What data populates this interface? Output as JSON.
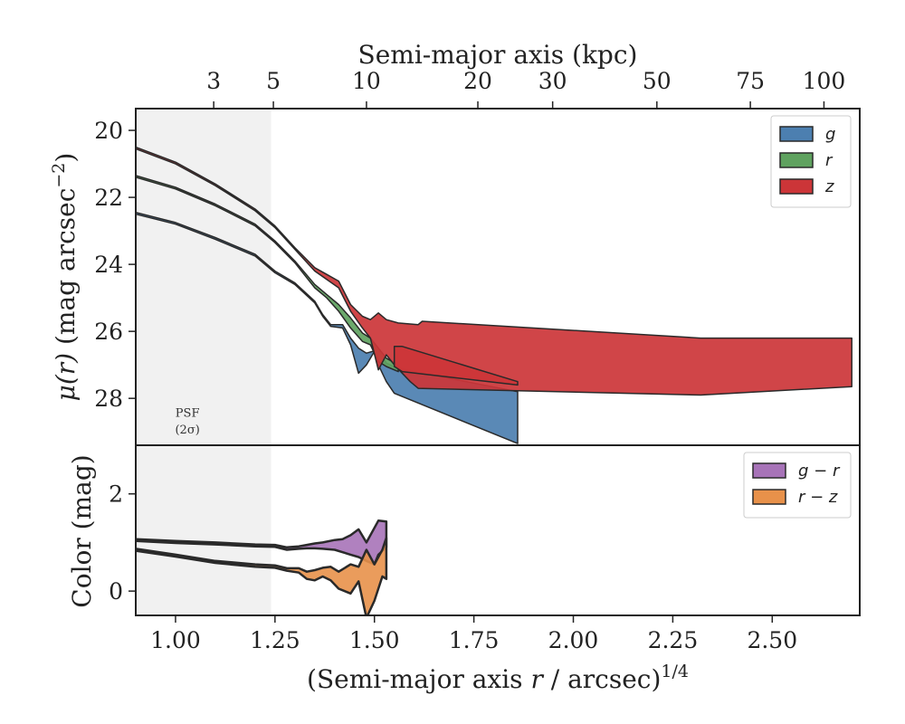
{
  "chart_data": [
    {
      "type": "area",
      "panel": "surface-brightness",
      "ylabel": "μ(r) (mag arcsec⁻²)",
      "xlim": [
        0.9,
        2.72
      ],
      "ylim": [
        29.4,
        19.35
      ],
      "y_inverted": true,
      "yticks": [
        20,
        22,
        24,
        26,
        28
      ],
      "top_xlabel": "Semi-major axis (kpc)",
      "top_xticks": [
        {
          "label": "3",
          "at": 1.096
        },
        {
          "label": "5",
          "at": 1.246
        },
        {
          "label": "10",
          "at": 1.48
        },
        {
          "label": "20",
          "at": 1.76
        },
        {
          "label": "30",
          "at": 1.948
        },
        {
          "label": "50",
          "at": 2.21
        },
        {
          "label": "75",
          "at": 2.445
        },
        {
          "label": "100",
          "at": 2.63
        }
      ],
      "psf_shade": {
        "xmax": 1.24,
        "label_line1": "PSF",
        "label_line2": "(2σ)"
      },
      "legend": {
        "position": "upper-right"
      },
      "series": [
        {
          "name": "g",
          "color": "#4c7fb0",
          "upper": [
            [
              0.9,
              22.45
            ],
            [
              1.0,
              22.75
            ],
            [
              1.1,
              23.2
            ],
            [
              1.2,
              23.7
            ],
            [
              1.25,
              24.2
            ],
            [
              1.3,
              24.55
            ],
            [
              1.35,
              25.1
            ],
            [
              1.37,
              25.5
            ],
            [
              1.39,
              25.8
            ],
            [
              1.42,
              25.8
            ],
            [
              1.44,
              26.2
            ],
            [
              1.46,
              26.5
            ],
            [
              1.48,
              26.65
            ],
            [
              1.51,
              26.55
            ],
            [
              1.53,
              26.95
            ],
            [
              1.56,
              27.1
            ],
            [
              1.86,
              27.8
            ]
          ],
          "lower": [
            [
              0.9,
              22.5
            ],
            [
              1.0,
              22.8
            ],
            [
              1.1,
              23.25
            ],
            [
              1.2,
              23.75
            ],
            [
              1.25,
              24.25
            ],
            [
              1.3,
              24.6
            ],
            [
              1.35,
              25.15
            ],
            [
              1.37,
              25.55
            ],
            [
              1.39,
              25.85
            ],
            [
              1.42,
              25.9
            ],
            [
              1.44,
              26.4
            ],
            [
              1.46,
              27.25
            ],
            [
              1.48,
              27.0
            ],
            [
              1.5,
              26.6
            ],
            [
              1.51,
              27.0
            ],
            [
              1.53,
              27.5
            ],
            [
              1.55,
              27.85
            ],
            [
              1.86,
              29.35
            ]
          ]
        },
        {
          "name": "r",
          "color": "#5fa25f",
          "upper": [
            [
              0.9,
              21.35
            ],
            [
              1.0,
              21.7
            ],
            [
              1.1,
              22.2
            ],
            [
              1.2,
              22.8
            ],
            [
              1.25,
              23.3
            ],
            [
              1.3,
              23.9
            ],
            [
              1.35,
              24.6
            ],
            [
              1.38,
              24.9
            ],
            [
              1.41,
              25.2
            ],
            [
              1.44,
              25.6
            ],
            [
              1.47,
              26.05
            ],
            [
              1.49,
              26.2
            ],
            [
              1.51,
              26.5
            ],
            [
              1.53,
              26.8
            ],
            [
              1.56,
              27.0
            ]
          ],
          "lower": [
            [
              0.9,
              21.4
            ],
            [
              1.0,
              21.75
            ],
            [
              1.1,
              22.25
            ],
            [
              1.2,
              22.85
            ],
            [
              1.25,
              23.35
            ],
            [
              1.3,
              23.95
            ],
            [
              1.35,
              24.7
            ],
            [
              1.38,
              25.0
            ],
            [
              1.41,
              25.4
            ],
            [
              1.44,
              25.9
            ],
            [
              1.47,
              26.3
            ],
            [
              1.49,
              26.4
            ],
            [
              1.51,
              26.9
            ],
            [
              1.53,
              27.05
            ],
            [
              1.56,
              27.2
            ]
          ]
        },
        {
          "name": "z",
          "color": "#cc3538",
          "upper": [
            [
              0.9,
              20.5
            ],
            [
              1.0,
              20.95
            ],
            [
              1.1,
              21.6
            ],
            [
              1.2,
              22.35
            ],
            [
              1.25,
              22.85
            ],
            [
              1.3,
              23.5
            ],
            [
              1.35,
              24.1
            ],
            [
              1.38,
              24.3
            ],
            [
              1.41,
              24.5
            ],
            [
              1.44,
              25.2
            ],
            [
              1.47,
              25.55
            ],
            [
              1.49,
              25.65
            ],
            [
              1.51,
              25.45
            ],
            [
              1.53,
              25.65
            ],
            [
              1.56,
              25.75
            ],
            [
              1.61,
              25.8
            ],
            [
              1.62,
              25.7
            ],
            [
              2.32,
              26.2
            ],
            [
              2.7,
              26.2
            ]
          ],
          "lower": [
            [
              0.9,
              20.55
            ],
            [
              1.0,
              21.0
            ],
            [
              1.1,
              21.65
            ],
            [
              1.2,
              22.4
            ],
            [
              1.25,
              22.9
            ],
            [
              1.3,
              23.55
            ],
            [
              1.35,
              24.2
            ],
            [
              1.38,
              24.45
            ],
            [
              1.41,
              24.7
            ],
            [
              1.44,
              25.4
            ],
            [
              1.47,
              25.9
            ],
            [
              1.49,
              26.2
            ],
            [
              1.51,
              27.15
            ],
            [
              1.53,
              26.7
            ],
            [
              1.55,
              27.0
            ],
            [
              1.59,
              27.5
            ],
            [
              1.61,
              27.7
            ],
            [
              2.32,
              27.9
            ],
            [
              2.7,
              27.65
            ]
          ]
        },
        {
          "name": "",
          "color": "#cc3538",
          "upper": [
            [
              1.55,
              26.45
            ],
            [
              1.57,
              26.45
            ],
            [
              1.86,
              27.5
            ]
          ],
          "lower": [
            [
              1.55,
              27.05
            ],
            [
              1.57,
              27.2
            ],
            [
              1.86,
              27.6
            ]
          ]
        }
      ]
    },
    {
      "type": "area",
      "panel": "color",
      "ylabel": "Color (mag)",
      "xlabel": "(Semi-major axis r / arcsec)1/4",
      "xlim": [
        0.9,
        2.72
      ],
      "ylim": [
        -0.5,
        3.0
      ],
      "yticks": [
        0,
        2
      ],
      "xticks": [
        "1.00",
        "1.25",
        "1.50",
        "1.75",
        "2.00",
        "2.25",
        "2.50"
      ],
      "xtick_values": [
        1.0,
        1.25,
        1.5,
        1.75,
        2.0,
        2.25,
        2.5
      ],
      "psf_shade": {
        "xmax": 1.24
      },
      "legend": {
        "position": "upper-right"
      },
      "series": [
        {
          "name": "g − r",
          "color": "#a773b8",
          "upper": [
            [
              0.9,
              1.07
            ],
            [
              1.0,
              1.03
            ],
            [
              1.1,
              1.0
            ],
            [
              1.2,
              0.96
            ],
            [
              1.25,
              0.95
            ],
            [
              1.28,
              0.9
            ],
            [
              1.31,
              0.92
            ],
            [
              1.33,
              0.95
            ],
            [
              1.35,
              0.98
            ],
            [
              1.37,
              1.0
            ],
            [
              1.4,
              1.05
            ],
            [
              1.42,
              1.07
            ],
            [
              1.44,
              1.15
            ],
            [
              1.46,
              1.27
            ],
            [
              1.48,
              1.0
            ],
            [
              1.5,
              1.3
            ],
            [
              1.51,
              1.45
            ],
            [
              1.53,
              1.43
            ]
          ],
          "lower": [
            [
              0.9,
              1.03
            ],
            [
              1.0,
              0.99
            ],
            [
              1.1,
              0.96
            ],
            [
              1.2,
              0.92
            ],
            [
              1.25,
              0.91
            ],
            [
              1.28,
              0.85
            ],
            [
              1.31,
              0.87
            ],
            [
              1.33,
              0.88
            ],
            [
              1.35,
              0.88
            ],
            [
              1.37,
              0.87
            ],
            [
              1.4,
              0.85
            ],
            [
              1.42,
              0.8
            ],
            [
              1.44,
              0.75
            ],
            [
              1.46,
              0.7
            ],
            [
              1.48,
              0.62
            ],
            [
              1.5,
              0.55
            ],
            [
              1.51,
              0.75
            ],
            [
              1.53,
              0.9
            ]
          ]
        },
        {
          "name": "r − z",
          "color": "#e8914a",
          "upper": [
            [
              0.9,
              0.87
            ],
            [
              1.0,
              0.75
            ],
            [
              1.1,
              0.62
            ],
            [
              1.2,
              0.55
            ],
            [
              1.25,
              0.53
            ],
            [
              1.28,
              0.47
            ],
            [
              1.31,
              0.47
            ],
            [
              1.33,
              0.4
            ],
            [
              1.35,
              0.43
            ],
            [
              1.37,
              0.48
            ],
            [
              1.39,
              0.5
            ],
            [
              1.41,
              0.4
            ],
            [
              1.44,
              0.55
            ],
            [
              1.46,
              0.5
            ],
            [
              1.48,
              0.85
            ],
            [
              1.5,
              0.55
            ],
            [
              1.52,
              0.85
            ],
            [
              1.53,
              1.1
            ]
          ],
          "lower": [
            [
              0.9,
              0.83
            ],
            [
              1.0,
              0.71
            ],
            [
              1.1,
              0.58
            ],
            [
              1.2,
              0.5
            ],
            [
              1.25,
              0.48
            ],
            [
              1.28,
              0.42
            ],
            [
              1.31,
              0.38
            ],
            [
              1.33,
              0.25
            ],
            [
              1.35,
              0.22
            ],
            [
              1.37,
              0.3
            ],
            [
              1.39,
              0.22
            ],
            [
              1.41,
              0.05
            ],
            [
              1.44,
              -0.05
            ],
            [
              1.46,
              0.2
            ],
            [
              1.48,
              -0.55
            ],
            [
              1.5,
              -0.2
            ],
            [
              1.52,
              0.3
            ],
            [
              1.53,
              0.25
            ]
          ]
        }
      ]
    }
  ]
}
